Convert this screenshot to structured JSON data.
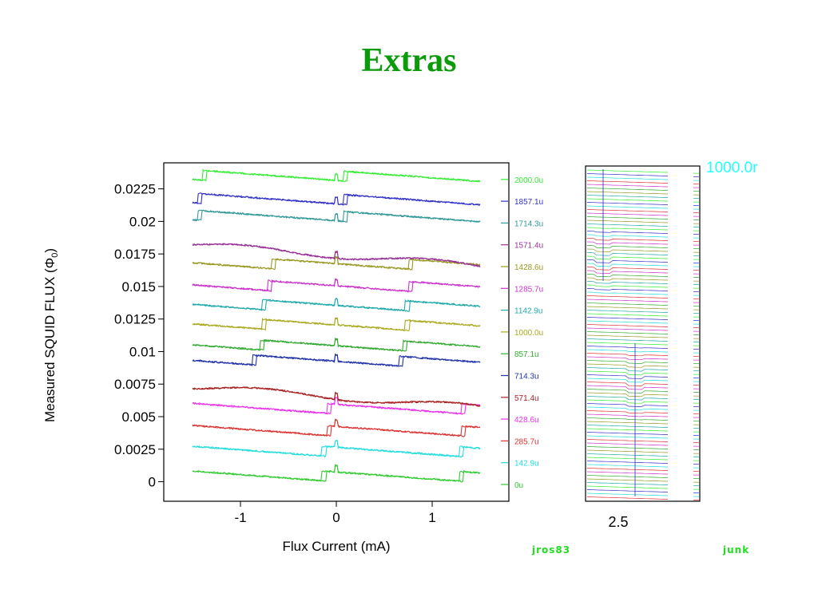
{
  "slide": {
    "title": "Extras"
  },
  "chart_data": [
    {
      "type": "line",
      "xlabel": "Flux Current (mA)",
      "ylabel_prefix": "Measured SQUID FLUX (",
      "ylabel_symbol": "Φ",
      "ylabel_sub": "0",
      "ylabel_suffix": ")",
      "xlim": [
        -1.8,
        1.8
      ],
      "ylim": [
        -0.0015,
        0.0245
      ],
      "xticks": [
        -1,
        0,
        1
      ],
      "xtick_labels": [
        "-1",
        "0",
        "1"
      ],
      "yticks": [
        0,
        0.0025,
        0.005,
        0.0075,
        0.01,
        0.0125,
        0.015,
        0.0175,
        0.02,
        0.0225
      ],
      "ytick_labels": [
        "0",
        "0.0025",
        "0.005",
        "0.0075",
        "0.01",
        "0.0125",
        "0.015",
        "0.0175",
        "0.02",
        "0.0225"
      ],
      "legend_placement": "right",
      "series": [
        {
          "name": "0u",
          "color": "#33cc33",
          "offset": 0.0,
          "jumps": [
            -0.15,
            1.28
          ]
        },
        {
          "name": "142.9u",
          "color": "#22dddd",
          "offset": 0.0019,
          "jumps": [
            -0.15,
            1.28
          ]
        },
        {
          "name": "285.7u",
          "color": "#dd3333",
          "offset": 0.0035,
          "jumps": [
            -0.1,
            1.3
          ]
        },
        {
          "name": "428.6u",
          "color": "#ee33ee",
          "offset": 0.0052,
          "jumps": [
            -0.1,
            1.3
          ]
        },
        {
          "name": "571.4u",
          "color": "#aa2222",
          "offset": 0.0065,
          "jumps": []
        },
        {
          "name": "714.3u",
          "color": "#2233aa",
          "offset": 0.0085,
          "jumps": [
            -0.88,
            0.65
          ]
        },
        {
          "name": "857.1u",
          "color": "#33aa33",
          "offset": 0.0097,
          "jumps": [
            -0.8,
            0.7
          ]
        },
        {
          "name": "1000.0u",
          "color": "#aaaa22",
          "offset": 0.0113,
          "jumps": [
            -0.78,
            0.72
          ]
        },
        {
          "name": "1142.9u",
          "color": "#22aaaa",
          "offset": 0.0128,
          "jumps": [
            -0.78,
            0.72
          ]
        },
        {
          "name": "1285.7u",
          "color": "#cc33cc",
          "offset": 0.0143,
          "jumps": [
            -0.72,
            0.75
          ]
        },
        {
          "name": "1428.6u",
          "color": "#999922",
          "offset": 0.016,
          "jumps": [
            -0.68,
            0.75
          ]
        },
        {
          "name": "1571.4u",
          "color": "#993399",
          "offset": 0.0174,
          "jumps": []
        },
        {
          "name": "1714.3u",
          "color": "#339999",
          "offset": 0.0193,
          "jumps": [
            -1.45,
            0.08
          ]
        },
        {
          "name": "1857.1u",
          "color": "#3333cc",
          "offset": 0.0206,
          "jumps": [
            -1.45,
            0.08
          ]
        },
        {
          "name": "2000.0u",
          "color": "#33ee33",
          "offset": 0.0224,
          "jumps": [
            -1.4,
            0.08
          ]
        }
      ]
    },
    {
      "type": "line",
      "x_tick_label": "2.5",
      "corner_label": "1000.0r",
      "corner_label_color": "#22ffff",
      "colors": [
        "#33ee33",
        "#3333cc",
        "#22dddd",
        "#dd3333",
        "#cc33cc",
        "#33aa33",
        "#999922",
        "#22aaaa"
      ]
    }
  ],
  "labels": {
    "left_tag": "jros83",
    "right_tag": "junk"
  }
}
